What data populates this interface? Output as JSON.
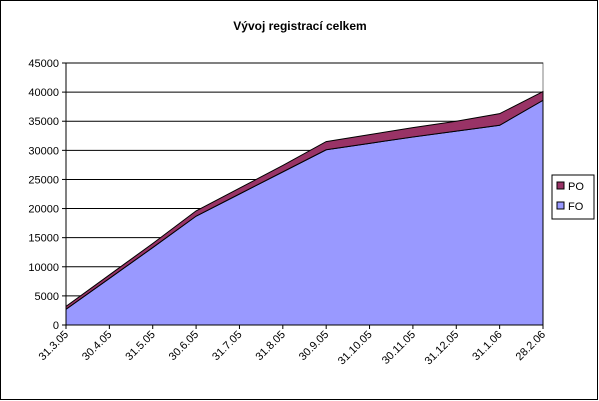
{
  "chart_data": {
    "type": "stacked_area",
    "title": "Vývoj registrací celkem",
    "categories": [
      "31.3.05",
      "30.4.05",
      "31.5.05",
      "30.6.05",
      "31.7.05",
      "31.8.05",
      "30.9.05",
      "31.10.05",
      "30.11.05",
      "31.12.05",
      "31.1.06",
      "28.2.06"
    ],
    "series": [
      {
        "name": "FO",
        "color": "#9999ff",
        "values": [
          2700,
          8000,
          13300,
          18700,
          22500,
          26300,
          30100,
          31200,
          32300,
          33300,
          34300,
          38600
        ]
      },
      {
        "name": "PO",
        "color": "#993366",
        "values": [
          500,
          600,
          700,
          900,
          1000,
          1100,
          1400,
          1500,
          1600,
          1700,
          2000,
          1500
        ]
      }
    ],
    "ylim": [
      0,
      45000
    ],
    "yticks": [
      0,
      5000,
      10000,
      15000,
      20000,
      25000,
      30000,
      35000,
      40000,
      45000
    ],
    "grid": true,
    "legend": "right"
  }
}
